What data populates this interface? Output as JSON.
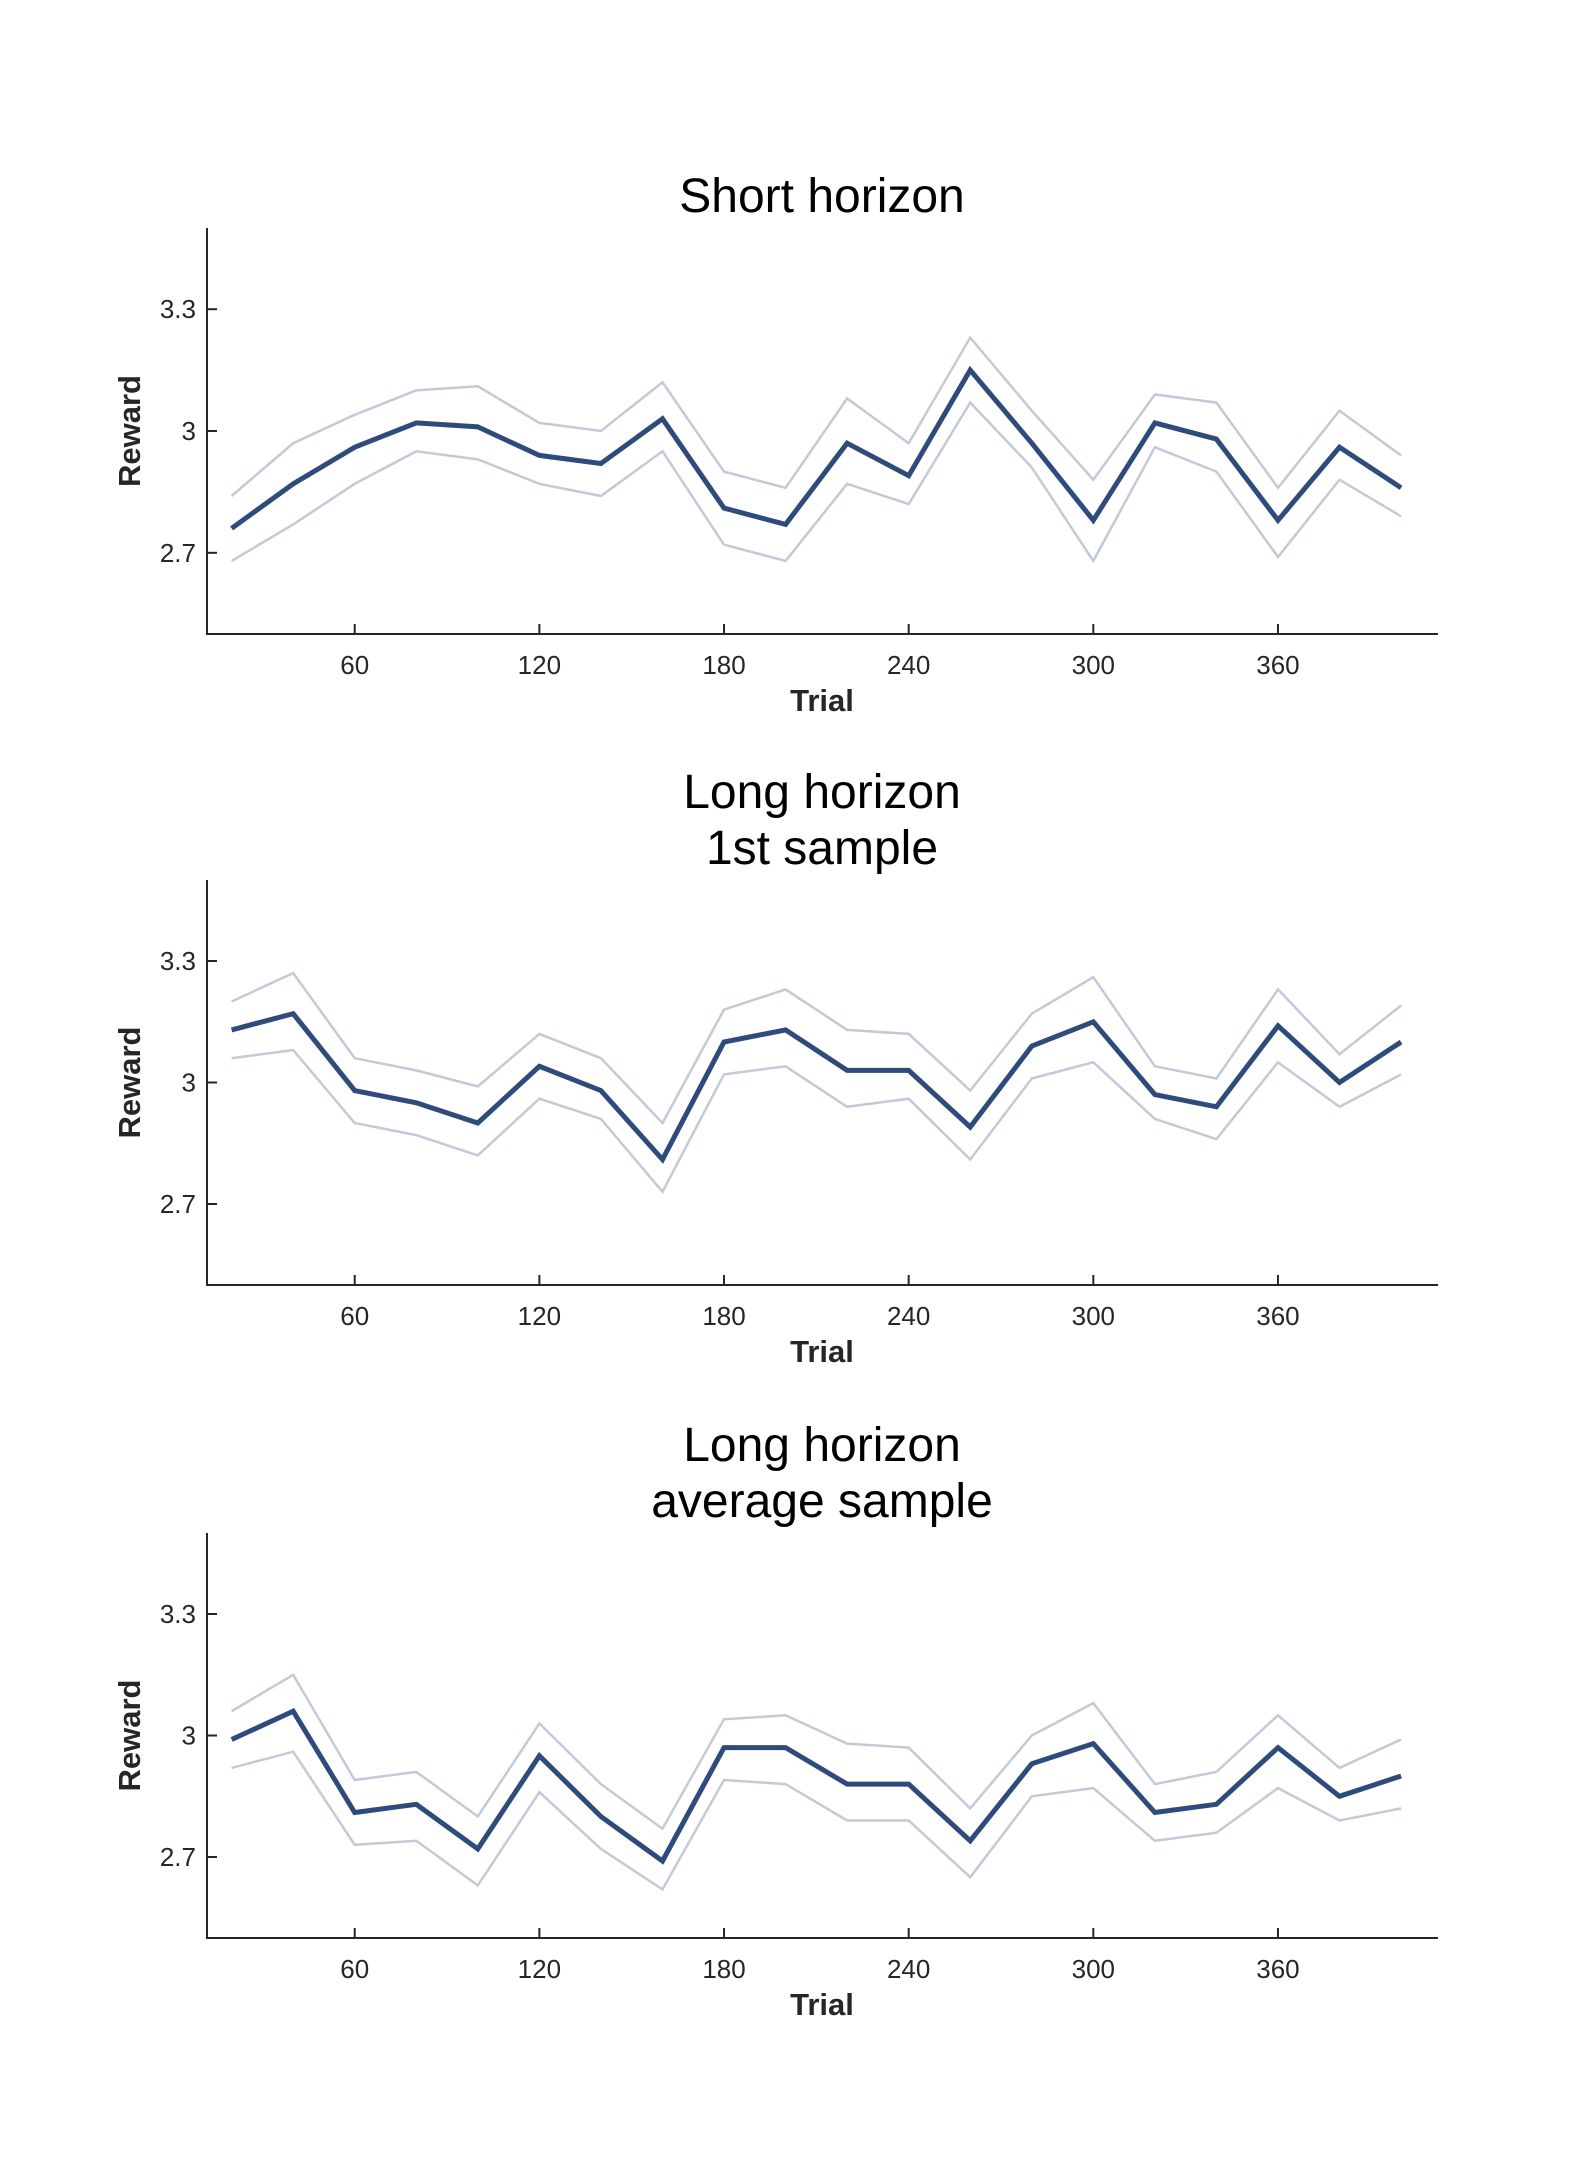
{
  "colors": {
    "mean_line": "#2f4b7c",
    "error_band": "#c2cad8",
    "axis": "#262626"
  },
  "chart_data": [
    {
      "type": "line",
      "title": [
        "Short horizon"
      ],
      "xlabel": "Trial",
      "ylabel": "Reward",
      "xlim": [
        12,
        412
      ],
      "ylim": [
        2.5,
        3.5
      ],
      "xticks": [
        60,
        120,
        180,
        240,
        300,
        360
      ],
      "xtick_labels": [
        "60",
        "120",
        "180",
        "240",
        "300",
        "360"
      ],
      "yticks": [
        2.7,
        3.0,
        3.3
      ],
      "ytick_labels": [
        "2.7",
        "3",
        "3.3"
      ],
      "grid": false,
      "x": [
        20,
        40,
        60,
        80,
        100,
        120,
        140,
        160,
        180,
        200,
        220,
        240,
        260,
        280,
        300,
        320,
        340,
        360,
        380,
        400
      ],
      "series": [
        {
          "role": "upper",
          "values": [
            2.84,
            2.97,
            3.04,
            3.1,
            3.11,
            3.02,
            3.0,
            3.12,
            2.9,
            2.86,
            3.08,
            2.97,
            3.23,
            3.05,
            2.88,
            3.09,
            3.07,
            2.86,
            3.05,
            2.94
          ]
        },
        {
          "role": "mean",
          "values": [
            2.76,
            2.87,
            2.96,
            3.02,
            3.01,
            2.94,
            2.92,
            3.03,
            2.81,
            2.77,
            2.97,
            2.89,
            3.15,
            2.97,
            2.78,
            3.02,
            2.98,
            2.78,
            2.96,
            2.86
          ]
        },
        {
          "role": "lower",
          "values": [
            2.68,
            2.77,
            2.87,
            2.95,
            2.93,
            2.87,
            2.84,
            2.95,
            2.72,
            2.68,
            2.87,
            2.82,
            3.07,
            2.91,
            2.68,
            2.96,
            2.9,
            2.69,
            2.88,
            2.79
          ]
        }
      ]
    },
    {
      "type": "line",
      "title": [
        "Long horizon",
        "1st sample"
      ],
      "xlabel": "Trial",
      "ylabel": "Reward",
      "xlim": [
        12,
        412
      ],
      "ylim": [
        2.5,
        3.5
      ],
      "xticks": [
        60,
        120,
        180,
        240,
        300,
        360
      ],
      "xtick_labels": [
        "60",
        "120",
        "180",
        "240",
        "300",
        "360"
      ],
      "yticks": [
        2.7,
        3.0,
        3.3
      ],
      "ytick_labels": [
        "2.7",
        "3",
        "3.3"
      ],
      "grid": false,
      "x": [
        20,
        40,
        60,
        80,
        100,
        120,
        140,
        160,
        180,
        200,
        220,
        240,
        260,
        280,
        300,
        320,
        340,
        360,
        380,
        400
      ],
      "series": [
        {
          "role": "upper",
          "values": [
            3.2,
            3.27,
            3.06,
            3.03,
            2.99,
            3.12,
            3.06,
            2.9,
            3.18,
            3.23,
            3.13,
            3.12,
            2.98,
            3.17,
            3.26,
            3.04,
            3.01,
            3.23,
            3.07,
            3.19
          ]
        },
        {
          "role": "mean",
          "values": [
            3.13,
            3.17,
            2.98,
            2.95,
            2.9,
            3.04,
            2.98,
            2.81,
            3.1,
            3.13,
            3.03,
            3.03,
            2.89,
            3.09,
            3.15,
            2.97,
            2.94,
            3.14,
            3.0,
            3.1
          ]
        },
        {
          "role": "lower",
          "values": [
            3.06,
            3.08,
            2.9,
            2.87,
            2.82,
            2.96,
            2.91,
            2.73,
            3.02,
            3.04,
            2.94,
            2.96,
            2.81,
            3.01,
            3.05,
            2.91,
            2.86,
            3.05,
            2.94,
            3.02
          ]
        }
      ]
    },
    {
      "type": "line",
      "title": [
        "Long horizon",
        "average sample"
      ],
      "xlabel": "Trial",
      "ylabel": "Reward",
      "xlim": [
        12,
        412
      ],
      "ylim": [
        2.5,
        3.5
      ],
      "xticks": [
        60,
        120,
        180,
        240,
        300,
        360
      ],
      "xtick_labels": [
        "60",
        "120",
        "180",
        "240",
        "300",
        "360"
      ],
      "yticks": [
        2.7,
        3.0,
        3.3
      ],
      "ytick_labels": [
        "2.7",
        "3",
        "3.3"
      ],
      "grid": false,
      "x": [
        20,
        40,
        60,
        80,
        100,
        120,
        140,
        160,
        180,
        200,
        220,
        240,
        260,
        280,
        300,
        320,
        340,
        360,
        380,
        400
      ],
      "series": [
        {
          "role": "upper",
          "values": [
            3.06,
            3.15,
            2.89,
            2.91,
            2.8,
            3.03,
            2.88,
            2.77,
            3.04,
            3.05,
            2.98,
            2.97,
            2.82,
            3.0,
            3.08,
            2.88,
            2.91,
            3.05,
            2.92,
            2.99
          ]
        },
        {
          "role": "mean",
          "values": [
            2.99,
            3.06,
            2.81,
            2.83,
            2.72,
            2.95,
            2.8,
            2.69,
            2.97,
            2.97,
            2.88,
            2.88,
            2.74,
            2.93,
            2.98,
            2.81,
            2.83,
            2.97,
            2.85,
            2.9
          ]
        },
        {
          "role": "lower",
          "values": [
            2.92,
            2.96,
            2.73,
            2.74,
            2.63,
            2.86,
            2.72,
            2.62,
            2.89,
            2.88,
            2.79,
            2.79,
            2.65,
            2.85,
            2.87,
            2.74,
            2.76,
            2.87,
            2.79,
            2.82
          ]
        }
      ]
    }
  ]
}
